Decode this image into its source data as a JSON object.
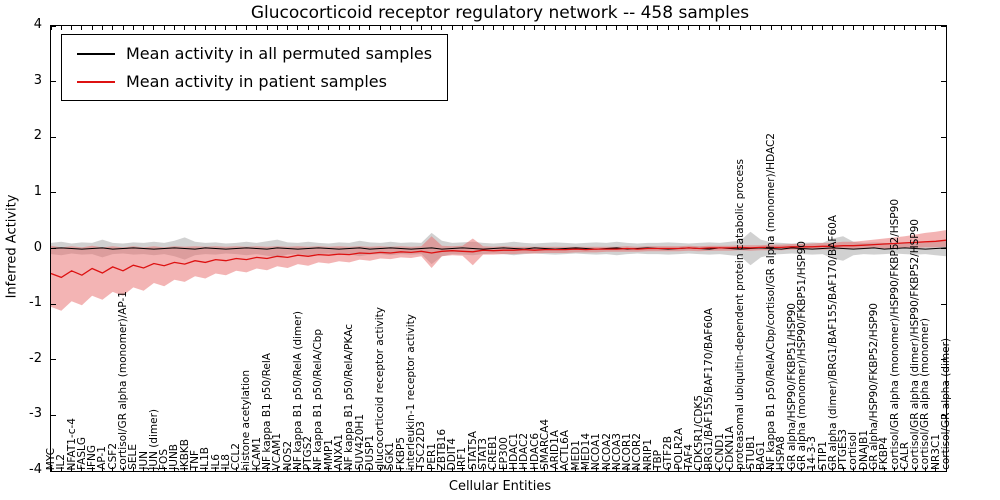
{
  "title": "Glucocorticoid receptor regulatory network -- 458 samples",
  "xlabel": "Cellular Entities",
  "ylabel": "Inferred Activity",
  "legend": {
    "permuted": "Mean activity in all permuted samples",
    "patient": "Mean activity in patient samples"
  },
  "chart_data": {
    "type": "line",
    "title": "Glucocorticoid receptor regulatory network -- 458 samples",
    "xlabel": "Cellular Entities",
    "ylabel": "Inferred Activity",
    "ylim": [
      -4,
      4
    ],
    "yticks": [
      -4,
      -3,
      -2,
      -1,
      0,
      1,
      2,
      3,
      4
    ],
    "grid": false,
    "legend_position": "upper-left",
    "categories": [
      "MYC",
      "IL2",
      "NFAT1-c-4",
      "FASLG",
      "IFNG",
      "AP-1",
      "CSF2",
      "cortisol/GR alpha (monomer)/AP-1",
      "SELE",
      "JUN",
      "JUN (dimer)",
      "FOS",
      "JUNB",
      "IKBKB",
      "TNF",
      "IL1B",
      "IL6",
      "IL8",
      "CCL2",
      "histone acetylation",
      "ICAM1",
      "NF kappa B1 p50/RelA",
      "VCAM1",
      "NOS2",
      "NF kappa B1 p50/RelA (dimer)",
      "PTGS2",
      "NF kappa B1 p50/RelA/Cbp",
      "MMP1",
      "ANXA1",
      "NF kappa B1 p50/RelA/PKAc",
      "SUV420H1",
      "DUSP1",
      "glucocorticoid receptor activity",
      "SGK1",
      "FKBP5",
      "interleukin-1 receptor activity",
      "TSC22D3",
      "PER1",
      "ZBTB16",
      "DDIT4",
      "IRF1",
      "STAT5A",
      "STAT3",
      "CREB1",
      "EP300",
      "HDAC1",
      "HDAC2",
      "HDAC6",
      "SMARCA4",
      "ARID1A",
      "ACTL6A",
      "MED1",
      "MED14",
      "NCOA1",
      "NCOA2",
      "NCOA3",
      "NCOR1",
      "NCOR2",
      "NRIP1",
      "TBP",
      "GTF2B",
      "POLR2A",
      "TAF4",
      "CDK5R1/CDK5",
      "BRG1/BAF155/BAF170/BAF60A",
      "CCND1",
      "CDKN1A",
      "proteasomal ubiquitin-dependent protein catabolic process",
      "STUB1",
      "BAG1",
      "NF kappa B1 p50/RelA/Cbp/cortisol/GR alpha (monomer)/HDAC2",
      "HSPA8",
      "GR alpha/HSP90/FKBP51/HSP90",
      "GR alpha (monomer)/HSP90/FKBP51/HSP90",
      "14-3-3",
      "STIP1",
      "GR alpha (dimer)/BRG1/BAF155/BAF170/BAF60A",
      "PTGES3",
      "cortisol",
      "DNAJB1",
      "GR alpha/HSP90/FKBP52/HSP90",
      "FKBP4",
      "cortisol/GR alpha (monomer)/HSP90/FKBP52/HSP90",
      "CALR",
      "cortisol/GR alpha (dimer)/HSP90/FKBP52/HSP90",
      "cortisol/GR alpha (monomer)",
      "NR3C1",
      "cortisol/GR alpha (dimer)"
    ],
    "series": [
      {
        "name": "Mean activity in all permuted samples",
        "color": "#000000",
        "values": [
          0.0,
          0.01,
          0.0,
          -0.01,
          0.0,
          0.01,
          -0.01,
          0.0,
          0.01,
          0.0,
          -0.01,
          0.0,
          0.01,
          0.0,
          -0.01,
          0.01,
          0.0,
          -0.01,
          0.0,
          0.01,
          0.0,
          -0.01,
          0.01,
          0.0,
          -0.01,
          0.0,
          0.01,
          0.0,
          -0.01,
          0.0,
          0.01,
          -0.01,
          0.0,
          0.01,
          0.0,
          -0.01,
          0.0,
          0.01,
          -0.01,
          0.0,
          0.01,
          0.0,
          -0.01,
          0.0,
          0.01,
          0.0,
          -0.01,
          0.01,
          0.0,
          -0.01,
          0.0,
          0.01,
          0.0,
          -0.01,
          0.0,
          0.01,
          -0.01,
          0.0,
          0.01,
          0.0,
          -0.01,
          0.0,
          0.01,
          0.0,
          -0.01,
          0.01,
          0.0,
          -0.01,
          0.0,
          0.01,
          0.0,
          -0.01,
          0.01,
          0.0,
          -0.01,
          0.0,
          0.01,
          0.0,
          -0.01,
          0.0,
          0.01,
          -0.01,
          0.0,
          0.01,
          0.0,
          -0.01,
          0.0,
          0.01
        ]
      },
      {
        "name": "Mean activity in patient samples",
        "color": "#dd1111",
        "values": [
          -0.45,
          -0.52,
          -0.4,
          -0.48,
          -0.36,
          -0.44,
          -0.33,
          -0.4,
          -0.3,
          -0.35,
          -0.27,
          -0.31,
          -0.25,
          -0.28,
          -0.22,
          -0.25,
          -0.2,
          -0.22,
          -0.18,
          -0.2,
          -0.16,
          -0.18,
          -0.14,
          -0.16,
          -0.12,
          -0.14,
          -0.11,
          -0.12,
          -0.1,
          -0.11,
          -0.08,
          -0.09,
          -0.07,
          -0.08,
          -0.06,
          -0.07,
          -0.05,
          -0.08,
          -0.05,
          -0.04,
          -0.05,
          -0.06,
          -0.03,
          -0.04,
          -0.03,
          -0.03,
          -0.02,
          -0.03,
          -0.02,
          -0.02,
          -0.02,
          -0.01,
          -0.02,
          -0.01,
          -0.01,
          -0.01,
          0.0,
          -0.01,
          0.0,
          0.0,
          0.0,
          0.0,
          0.01,
          0.0,
          0.01,
          0.01,
          0.01,
          0.02,
          0.01,
          0.02,
          0.02,
          0.02,
          0.03,
          0.03,
          0.03,
          0.04,
          0.04,
          0.05,
          0.05,
          0.06,
          0.07,
          0.08,
          0.09,
          0.1,
          0.11,
          0.12,
          0.13,
          0.15
        ]
      }
    ],
    "bands": [
      {
        "name": "permuted-range",
        "color": "#9a9a9a",
        "opacity": 0.45,
        "upper": [
          0.1,
          0.12,
          0.09,
          0.11,
          0.1,
          0.16,
          0.1,
          0.09,
          0.11,
          0.1,
          0.12,
          0.1,
          0.14,
          0.2,
          0.12,
          0.1,
          0.11,
          0.09,
          0.1,
          0.12,
          0.1,
          0.13,
          0.16,
          0.11,
          0.1,
          0.12,
          0.1,
          0.09,
          0.11,
          0.1,
          0.14,
          0.11,
          0.1,
          0.12,
          0.1,
          0.11,
          0.1,
          0.28,
          0.14,
          0.1,
          0.11,
          0.12,
          0.1,
          0.09,
          0.1,
          0.12,
          0.1,
          0.09,
          0.1,
          0.11,
          0.1,
          0.09,
          0.1,
          0.11,
          0.1,
          0.12,
          0.1,
          0.09,
          0.1,
          0.1,
          0.11,
          0.1,
          0.09,
          0.1,
          0.11,
          0.1,
          0.12,
          0.14,
          0.3,
          0.16,
          0.11,
          0.1,
          0.09,
          0.1,
          0.11,
          0.1,
          0.18,
          0.22,
          0.12,
          0.1,
          0.11,
          0.1,
          0.09,
          0.1,
          0.11,
          0.1,
          0.12,
          0.14
        ],
        "lower": [
          -0.1,
          -0.12,
          -0.09,
          -0.11,
          -0.1,
          -0.16,
          -0.1,
          -0.09,
          -0.11,
          -0.1,
          -0.12,
          -0.1,
          -0.14,
          -0.2,
          -0.12,
          -0.1,
          -0.11,
          -0.09,
          -0.1,
          -0.12,
          -0.1,
          -0.13,
          -0.16,
          -0.11,
          -0.1,
          -0.12,
          -0.1,
          -0.09,
          -0.11,
          -0.1,
          -0.14,
          -0.11,
          -0.1,
          -0.12,
          -0.1,
          -0.11,
          -0.1,
          -0.28,
          -0.14,
          -0.1,
          -0.11,
          -0.12,
          -0.1,
          -0.09,
          -0.1,
          -0.12,
          -0.1,
          -0.09,
          -0.1,
          -0.11,
          -0.1,
          -0.09,
          -0.1,
          -0.11,
          -0.1,
          -0.12,
          -0.1,
          -0.09,
          -0.1,
          -0.1,
          -0.11,
          -0.1,
          -0.09,
          -0.1,
          -0.11,
          -0.1,
          -0.12,
          -0.14,
          -0.3,
          -0.16,
          -0.11,
          -0.1,
          -0.09,
          -0.1,
          -0.11,
          -0.1,
          -0.18,
          -0.22,
          -0.12,
          -0.1,
          -0.11,
          -0.1,
          -0.09,
          -0.1,
          -0.11,
          -0.1,
          -0.12,
          -0.14
        ]
      },
      {
        "name": "patient-range",
        "color": "#e86a6a",
        "opacity": 0.5,
        "upper": [
          0.05,
          0.02,
          0.04,
          0.02,
          0.05,
          0.02,
          0.04,
          0.02,
          0.04,
          0.02,
          0.04,
          0.02,
          0.04,
          0.03,
          0.04,
          0.03,
          0.04,
          0.03,
          0.04,
          0.03,
          0.04,
          0.03,
          0.04,
          0.03,
          0.04,
          0.03,
          0.04,
          0.03,
          0.04,
          0.03,
          0.04,
          0.03,
          0.04,
          0.03,
          0.04,
          0.03,
          0.04,
          0.22,
          0.05,
          0.04,
          0.05,
          0.18,
          0.04,
          0.03,
          0.04,
          0.03,
          0.03,
          0.03,
          0.03,
          0.03,
          0.03,
          0.03,
          0.03,
          0.03,
          0.03,
          0.03,
          0.04,
          0.03,
          0.04,
          0.04,
          0.04,
          0.04,
          0.05,
          0.04,
          0.05,
          0.05,
          0.05,
          0.06,
          0.06,
          0.06,
          0.07,
          0.07,
          0.08,
          0.08,
          0.09,
          0.1,
          0.1,
          0.12,
          0.12,
          0.14,
          0.16,
          0.18,
          0.2,
          0.22,
          0.25,
          0.28,
          0.3,
          0.33
        ],
        "lower": [
          -1.05,
          -1.12,
          -0.95,
          -1.02,
          -0.85,
          -0.92,
          -0.78,
          -0.85,
          -0.7,
          -0.76,
          -0.62,
          -0.68,
          -0.56,
          -0.6,
          -0.5,
          -0.54,
          -0.45,
          -0.48,
          -0.4,
          -0.43,
          -0.36,
          -0.39,
          -0.32,
          -0.35,
          -0.28,
          -0.31,
          -0.25,
          -0.27,
          -0.23,
          -0.25,
          -0.2,
          -0.22,
          -0.18,
          -0.19,
          -0.16,
          -0.17,
          -0.14,
          -0.35,
          -0.14,
          -0.12,
          -0.13,
          -0.3,
          -0.11,
          -0.11,
          -0.1,
          -0.1,
          -0.09,
          -0.09,
          -0.08,
          -0.08,
          -0.08,
          -0.07,
          -0.07,
          -0.07,
          -0.06,
          -0.06,
          -0.06,
          -0.06,
          -0.05,
          -0.05,
          -0.05,
          -0.05,
          -0.04,
          -0.05,
          -0.04,
          -0.04,
          -0.04,
          -0.03,
          -0.04,
          -0.03,
          -0.03,
          -0.03,
          -0.02,
          -0.02,
          -0.02,
          -0.02,
          -0.02,
          -0.01,
          -0.01,
          -0.01,
          0.0,
          0.0,
          0.0,
          0.01,
          0.01,
          0.02,
          0.02,
          0.03
        ]
      }
    ]
  }
}
